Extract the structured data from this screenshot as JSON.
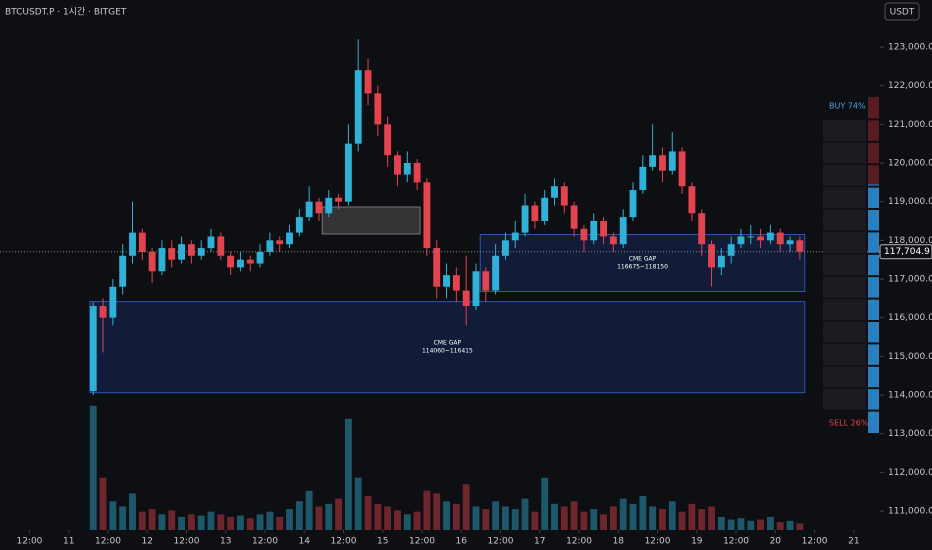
{
  "chart_data": {
    "type": "candlestick",
    "title": "BTCUSDT.P · 1시간 · BITGET",
    "currency": "USDT",
    "x": [
      31.5,
      34.5,
      37.5,
      40.5,
      43.5,
      46.5,
      49.5,
      52.5,
      55.5,
      58.5,
      61.5,
      64.5,
      67.5,
      70.5,
      73.5,
      76.5,
      79.5,
      82.5,
      85.5,
      88.5,
      91.5,
      94.5,
      97.5,
      100.5,
      103.5,
      106.5,
      109.5,
      112.5,
      115.5,
      118.5,
      121.5,
      124.5,
      127.5,
      130.5,
      133.5,
      136.5,
      139.5,
      142.5,
      145.5,
      148.5,
      151.5,
      154.5,
      157.5,
      160.5,
      163.5,
      166.5,
      169.5,
      172.5,
      175.5,
      178.5,
      181.5,
      184.5,
      187.5,
      190.5,
      193.5,
      196.5,
      199.5,
      202.5,
      205.5,
      208.5,
      211.5,
      214.5,
      217.5,
      220.5,
      223.5,
      226.5,
      229.5,
      232.5,
      235.5,
      238.5,
      241.5,
      244.5,
      247.5
    ],
    "open": [
      114100,
      116300,
      116000,
      116800,
      117600,
      118200,
      117700,
      117200,
      117800,
      117500,
      117900,
      117600,
      117800,
      118100,
      117600,
      117300,
      117500,
      117400,
      117700,
      118000,
      117900,
      118200,
      118600,
      119000,
      118700,
      119100,
      119000,
      120500,
      122400,
      121800,
      121000,
      120200,
      119700,
      120000,
      119500,
      117800,
      116800,
      117100,
      116700,
      116300,
      117200,
      116700,
      117600,
      118000,
      118200,
      118900,
      118500,
      119100,
      119400,
      118900,
      118300,
      118000,
      118500,
      118100,
      117900,
      118600,
      119300,
      119900,
      120200,
      119800,
      120300,
      119400,
      118700,
      117900,
      117300,
      117600,
      117900,
      118100,
      118100,
      118000,
      118200,
      117900,
      118000
    ],
    "high": [
      116400,
      116500,
      117000,
      117900,
      119000,
      118300,
      117800,
      118000,
      118000,
      118100,
      118000,
      118000,
      118300,
      118200,
      117700,
      117700,
      117600,
      117900,
      118200,
      118100,
      118400,
      118800,
      119400,
      119100,
      119300,
      119200,
      121000,
      123200,
      122700,
      122000,
      121200,
      120300,
      120300,
      120100,
      119600,
      118000,
      117400,
      117300,
      117600,
      117400,
      117300,
      117900,
      118200,
      118500,
      119200,
      119000,
      119300,
      119600,
      119500,
      119000,
      118400,
      118700,
      118600,
      118200,
      118800,
      119500,
      120200,
      121000,
      120400,
      120800,
      120400,
      119500,
      118800,
      118000,
      117800,
      118100,
      118300,
      118400,
      118300,
      118400,
      118300,
      118100,
      118100
    ],
    "low": [
      114000,
      115100,
      115800,
      116600,
      117400,
      117500,
      116900,
      117100,
      117300,
      117400,
      117400,
      117500,
      117700,
      117500,
      117100,
      117200,
      117200,
      117300,
      117600,
      117700,
      117800,
      118100,
      118500,
      118500,
      118600,
      118800,
      118900,
      120300,
      121500,
      120700,
      119900,
      119400,
      119500,
      119300,
      117600,
      116500,
      116500,
      116400,
      115800,
      116200,
      116400,
      116600,
      117500,
      117800,
      118100,
      118300,
      118400,
      118900,
      118700,
      118100,
      117700,
      117900,
      117900,
      117700,
      117800,
      118500,
      119200,
      119800,
      119500,
      119700,
      119200,
      118500,
      117600,
      116800,
      117100,
      117400,
      117800,
      117900,
      117800,
      117900,
      117700,
      117700,
      117500
    ],
    "close": [
      116300,
      116000,
      116800,
      117600,
      118200,
      117700,
      117200,
      117800,
      117500,
      117900,
      117600,
      117800,
      118100,
      117600,
      117300,
      117500,
      117400,
      117700,
      118000,
      117900,
      118200,
      118600,
      119000,
      118700,
      119100,
      119000,
      120500,
      122400,
      121800,
      121000,
      120200,
      119700,
      120000,
      119500,
      117800,
      116800,
      117100,
      116700,
      116300,
      117200,
      116700,
      117600,
      118000,
      118200,
      118900,
      118500,
      119100,
      119400,
      118900,
      118300,
      118000,
      118500,
      118100,
      117900,
      118600,
      119300,
      119900,
      120200,
      119800,
      120300,
      119400,
      118700,
      117900,
      117300,
      117600,
      117900,
      118100,
      118100,
      118000,
      118200,
      117900,
      118000,
      117704.9
    ],
    "volume": [
      95,
      40,
      22,
      18,
      28,
      14,
      16,
      12,
      15,
      10,
      12,
      11,
      14,
      12,
      10,
      11,
      9,
      12,
      14,
      10,
      16,
      22,
      30,
      18,
      20,
      24,
      85,
      40,
      26,
      20,
      18,
      15,
      12,
      14,
      30,
      28,
      22,
      20,
      35,
      18,
      16,
      22,
      18,
      16,
      24,
      14,
      40,
      20,
      18,
      22,
      14,
      16,
      12,
      18,
      24,
      20,
      26,
      18,
      16,
      22,
      14,
      20,
      16,
      18,
      10,
      8,
      9,
      7,
      8,
      10,
      6,
      7,
      5
    ],
    "vlim": [
      0,
      130
    ],
    "up_color": "#2fb1d8",
    "down_color": "#e2434f",
    "xlim": [
      3,
      272
    ],
    "xticks": [
      {
        "value": 12,
        "label": "12:00"
      },
      {
        "value": 24,
        "label": "11"
      },
      {
        "value": 36,
        "label": "12:00"
      },
      {
        "value": 48,
        "label": "12"
      },
      {
        "value": 60,
        "label": "12:00"
      },
      {
        "value": 72,
        "label": "13"
      },
      {
        "value": 84,
        "label": "12:00"
      },
      {
        "value": 96,
        "label": "14"
      },
      {
        "value": 108,
        "label": "12:00"
      },
      {
        "value": 120,
        "label": "15"
      },
      {
        "value": 132,
        "label": "12:00"
      },
      {
        "value": 144,
        "label": "16"
      },
      {
        "value": 156,
        "label": "12:00"
      },
      {
        "value": 168,
        "label": "17"
      },
      {
        "value": 180,
        "label": "12:00"
      },
      {
        "value": 192,
        "label": "18"
      },
      {
        "value": 204,
        "label": "12:00"
      },
      {
        "value": 216,
        "label": "19"
      },
      {
        "value": 228,
        "label": "12:00"
      },
      {
        "value": 240,
        "label": "20"
      },
      {
        "value": 252,
        "label": "12:00"
      },
      {
        "value": 264,
        "label": "21"
      }
    ],
    "ylim": [
      110509,
      124215
    ],
    "yticks": [
      {
        "value": 111000,
        "label": "111,000.0"
      },
      {
        "value": 112000,
        "label": "112,000.0"
      },
      {
        "value": 113000,
        "label": "113,000.0"
      },
      {
        "value": 114000,
        "label": "114,000.0"
      },
      {
        "value": 115000,
        "label": "115,000.0"
      },
      {
        "value": 116000,
        "label": "116,000.0"
      },
      {
        "value": 117000,
        "label": "117,000.0"
      },
      {
        "value": 118000,
        "label": "118,000.0"
      },
      {
        "value": 119000,
        "label": "119,000.0"
      },
      {
        "value": 120000,
        "label": "120,000.0"
      },
      {
        "value": 121000,
        "label": "121,000.0"
      },
      {
        "value": 122000,
        "label": "122,000.0"
      },
      {
        "value": 123000,
        "label": "123,000.0"
      }
    ],
    "last_price": {
      "value": 117704.9,
      "label": "117,704.9"
    },
    "zones": [
      {
        "label": "CME GAP",
        "range_label": "114060~116415",
        "low": 114060,
        "high": 116415,
        "start": 30.5,
        "end": 249
      },
      {
        "label": "CME GAP",
        "range_label": "116675~118150",
        "low": 116675,
        "high": 118150,
        "start": 149.8,
        "end": 249
      }
    ],
    "box": {
      "low": 118164,
      "high": 118862,
      "start": 101.5,
      "end": 131.4
    },
    "order_flow": {
      "buy": {
        "value": 74,
        "label": "BUY 74%"
      },
      "sell": {
        "value": 26,
        "label": "SELL 26%"
      }
    }
  }
}
